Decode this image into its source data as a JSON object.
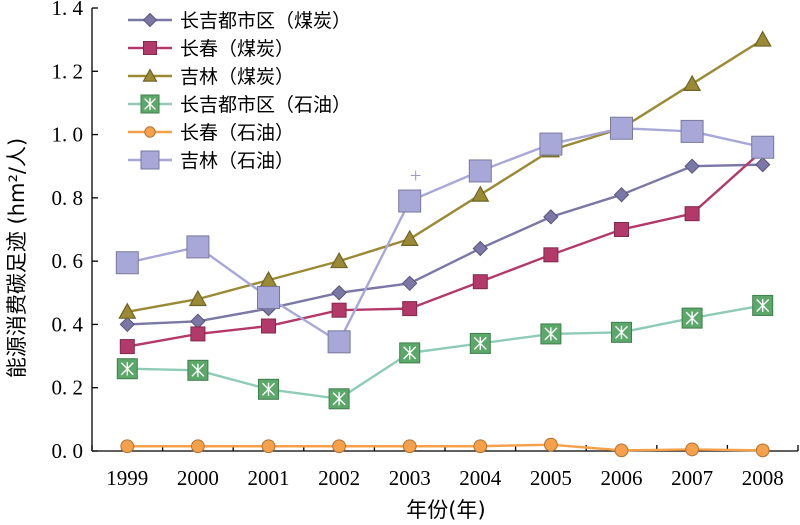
{
  "chart_data": {
    "type": "line",
    "title": "",
    "xlabel": "年份(年)",
    "ylabel": "能源消费碳足迹 (hm²/人)",
    "ylim": [
      0.0,
      1.4
    ],
    "yticks": [
      "0. 0",
      "0. 2",
      "0. 4",
      "0. 6",
      "0. 8",
      "1. 0",
      "1. 2",
      "1. 4"
    ],
    "ytick_values": [
      0.0,
      0.2,
      0.4,
      0.6,
      0.8,
      1.0,
      1.2,
      1.4
    ],
    "categories": [
      "1999",
      "2000",
      "2001",
      "2002",
      "2003",
      "2004",
      "2005",
      "2006",
      "2007",
      "2008"
    ],
    "grid": false,
    "legend_position": "top-left",
    "series": [
      {
        "name": "长吉都市区（煤炭）",
        "marker": "diamond",
        "color": "#7b77a6",
        "values": [
          0.4,
          0.41,
          0.45,
          0.5,
          0.53,
          0.64,
          0.74,
          0.81,
          0.9,
          0.905
        ]
      },
      {
        "name": "长春（煤炭）",
        "marker": "square",
        "color": "#b3396a",
        "values": [
          0.33,
          0.37,
          0.395,
          0.445,
          0.45,
          0.535,
          0.62,
          0.7,
          0.75,
          0.95
        ]
      },
      {
        "name": "吉林（煤炭）",
        "marker": "triangle",
        "color": "#9a8a35",
        "values": [
          0.44,
          0.48,
          0.54,
          0.6,
          0.67,
          0.81,
          0.95,
          1.02,
          1.16,
          1.3
        ]
      },
      {
        "name": "长吉都市区（石油）",
        "marker": "starsquare",
        "color": "#8fcbb7",
        "values": [
          0.26,
          0.255,
          0.195,
          0.165,
          0.31,
          0.34,
          0.37,
          0.375,
          0.42,
          0.46
        ]
      },
      {
        "name": "长春（石油）",
        "marker": "circle",
        "color": "#f5a04a",
        "values": [
          0.015,
          0.015,
          0.015,
          0.015,
          0.015,
          0.015,
          0.02,
          0.002,
          0.005,
          0.002
        ]
      },
      {
        "name": "吉林（石油）",
        "marker": "square",
        "color": "#a8a8d8",
        "values": [
          0.595,
          0.645,
          0.485,
          0.345,
          0.79,
          0.885,
          0.97,
          1.02,
          1.01,
          0.96
        ]
      }
    ],
    "annotations": [
      {
        "text": "+",
        "x": "2003",
        "y": 0.87
      }
    ]
  }
}
